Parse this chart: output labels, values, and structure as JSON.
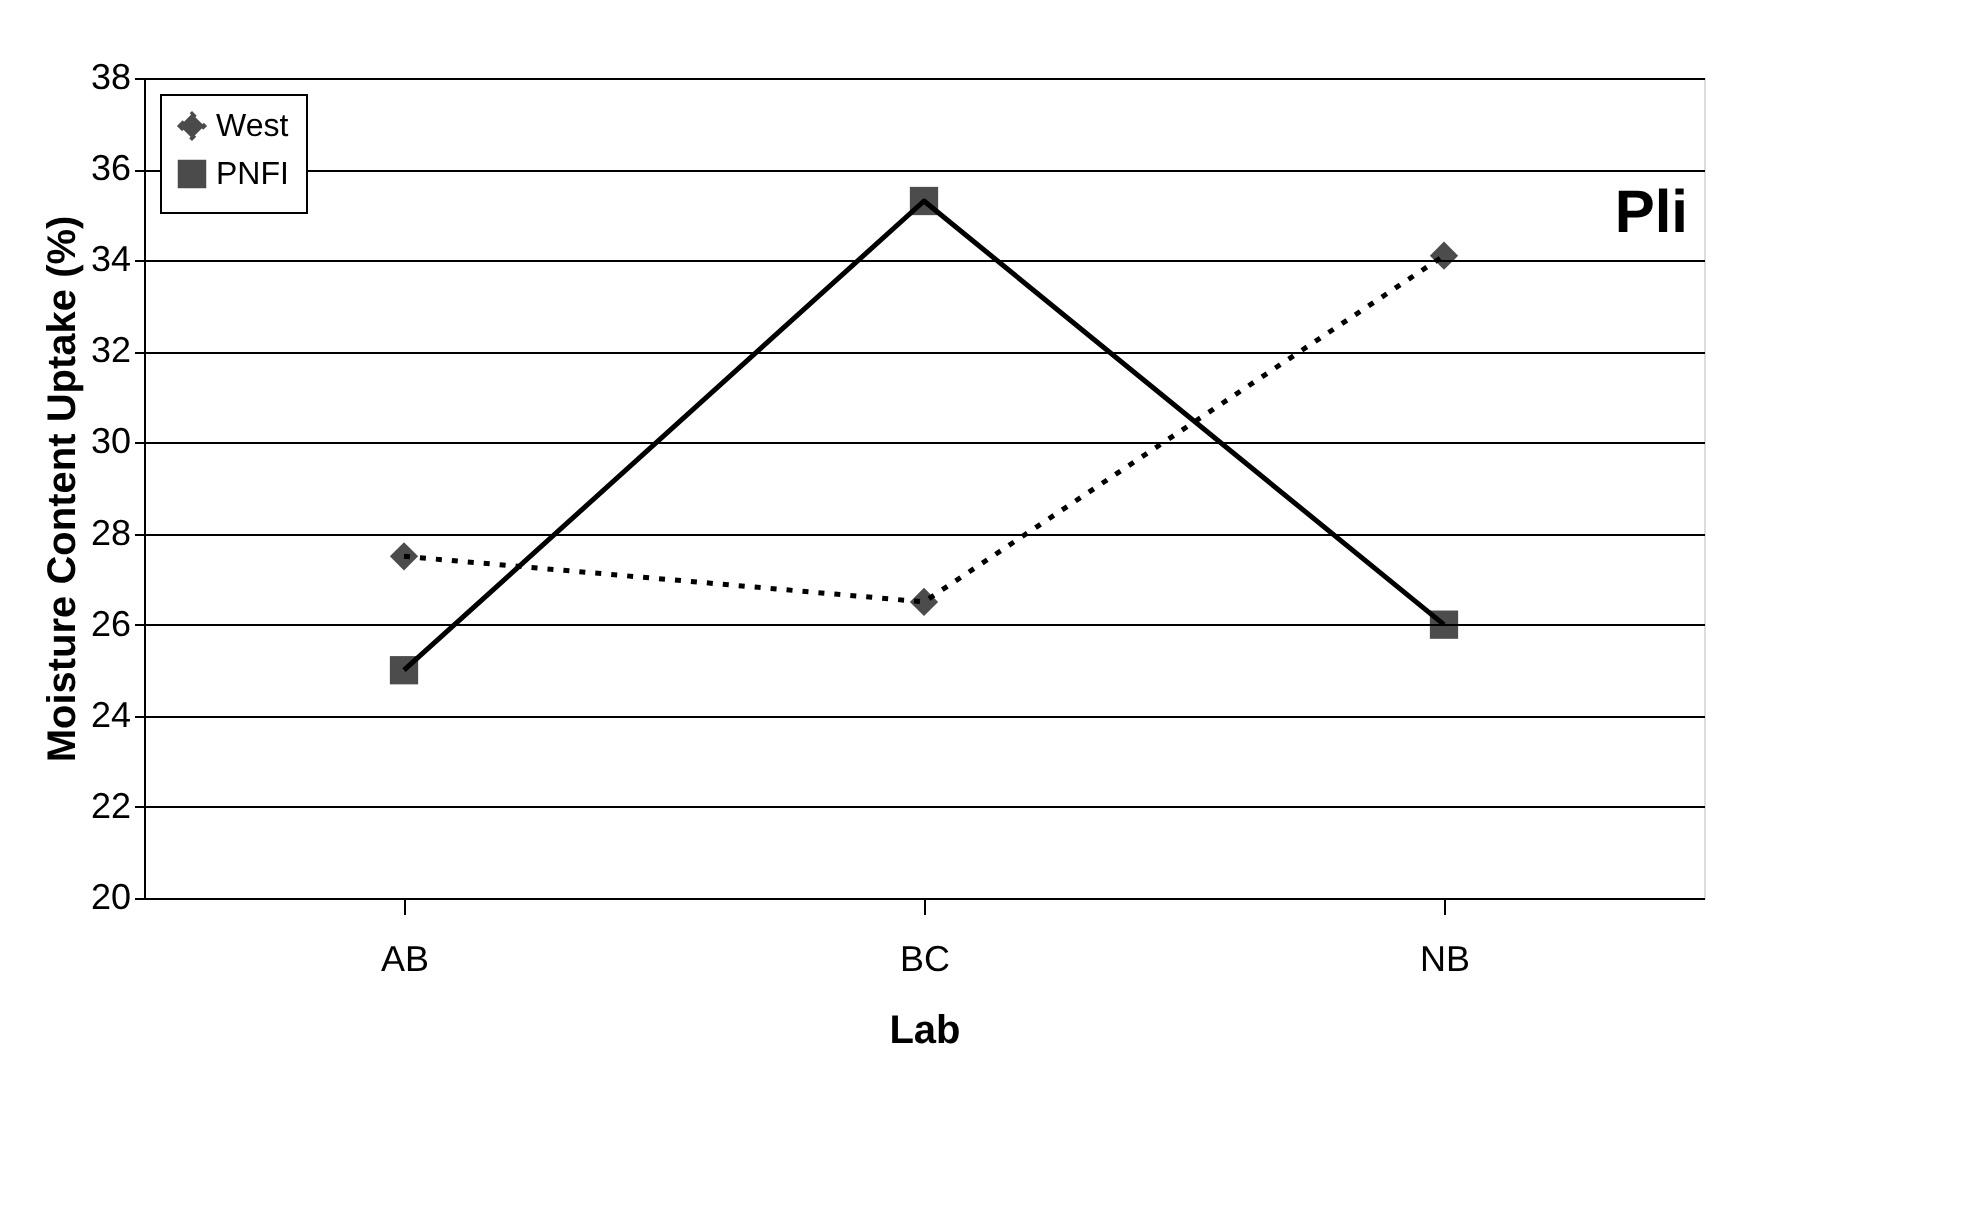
{
  "chart_data": {
    "type": "line",
    "xlabel": "Lab",
    "ylabel": "Moisture Content Uptake (%)",
    "categories": [
      "AB",
      "BC",
      "NB"
    ],
    "series": [
      {
        "name": "West",
        "color": "#000000",
        "values": [
          27.5,
          26.5,
          34.1
        ],
        "marker": "diamond",
        "line_style": "dotted"
      },
      {
        "name": "PNFI",
        "color": "#000000",
        "values": [
          25.0,
          35.3,
          26.0
        ],
        "marker": "square",
        "line_style": "solid"
      }
    ],
    "ylim": [
      20,
      38
    ],
    "yticks": [
      20,
      22,
      24,
      26,
      28,
      30,
      32,
      34,
      36,
      38
    ],
    "grid": "y",
    "legend": "top left",
    "annotations": [
      "Pli"
    ]
  }
}
